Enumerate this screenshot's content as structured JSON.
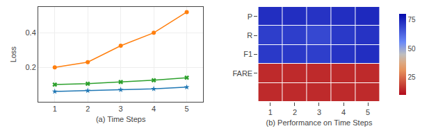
{
  "chart_data": [
    {
      "type": "line",
      "x": [
        1,
        2,
        3,
        4,
        5
      ],
      "series": [
        {
          "color": "#FF7F0E",
          "marker": "circle",
          "values": [
            0.2,
            0.23,
            0.325,
            0.4,
            0.52
          ]
        },
        {
          "color": "#2CA02C",
          "marker": "x",
          "values": [
            0.1,
            0.105,
            0.115,
            0.125,
            0.14
          ]
        },
        {
          "color": "#1F77B4",
          "marker": "star",
          "values": [
            0.06,
            0.065,
            0.07,
            0.075,
            0.085
          ]
        }
      ],
      "x_label": "(a) Time Steps",
      "y_label": "Loss",
      "xlim": [
        0.5,
        5.5
      ],
      "xticks": [
        1,
        2,
        3,
        4,
        5
      ],
      "ylim": [
        0,
        0.55
      ],
      "yticks": [
        0.2,
        0.4
      ],
      "grid": true
    },
    {
      "type": "heatmap",
      "categories": [
        "1",
        "2",
        "3",
        "4",
        "5"
      ],
      "rows": [
        "P",
        "R",
        "F1",
        "FARE",
        null
      ],
      "cells": [
        [
          73,
          73,
          72,
          73,
          74
        ],
        [
          70,
          70,
          68,
          71,
          72
        ],
        [
          71,
          71,
          70,
          72,
          73
        ],
        [
          15,
          15,
          15,
          15,
          15
        ],
        [
          15,
          15,
          15,
          15,
          15
        ]
      ],
      "x_label": "(b) Performance on Time Steps",
      "color_range": [
        10,
        80
      ],
      "color_ticks": [
        25,
        50,
        75
      ]
    }
  ]
}
